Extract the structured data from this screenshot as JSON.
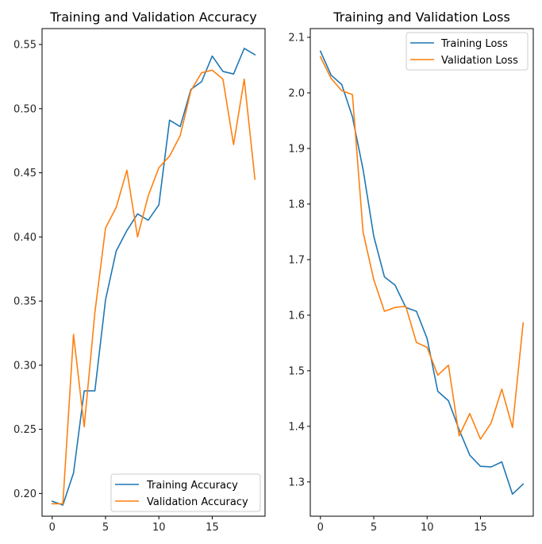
{
  "colors": {
    "training": "#1f77b4",
    "validation": "#ff7f0e"
  },
  "chart_data": [
    {
      "type": "line",
      "title": "Training and Validation Accuracy",
      "x": [
        0,
        1,
        2,
        3,
        4,
        5,
        6,
        7,
        8,
        9,
        10,
        11,
        12,
        13,
        14,
        15,
        16,
        17,
        18,
        19
      ],
      "xlim": [
        -0.95,
        19.95
      ],
      "ylim": [
        0.1823,
        0.5624
      ],
      "xticks": [
        0,
        5,
        10,
        15
      ],
      "xtick_labels": [
        "0",
        "5",
        "10",
        "15"
      ],
      "yticks": [
        0.2,
        0.25,
        0.3,
        0.35,
        0.4,
        0.45,
        0.5,
        0.55
      ],
      "ytick_labels": [
        "0.20",
        "0.25",
        "0.30",
        "0.35",
        "0.40",
        "0.45",
        "0.50",
        "0.55"
      ],
      "legend": "lower-right",
      "grid": false,
      "series": [
        {
          "name": "Training Accuracy",
          "color": "#1f77b4",
          "values": [
            0.194,
            0.191,
            0.216,
            0.28,
            0.28,
            0.351,
            0.389,
            0.405,
            0.418,
            0.413,
            0.425,
            0.491,
            0.486,
            0.515,
            0.521,
            0.541,
            0.529,
            0.527,
            0.547,
            0.542
          ]
        },
        {
          "name": "Validation Accuracy",
          "color": "#ff7f0e",
          "values": [
            0.192,
            0.192,
            0.324,
            0.252,
            0.341,
            0.407,
            0.423,
            0.452,
            0.4,
            0.432,
            0.454,
            0.463,
            0.479,
            0.514,
            0.528,
            0.53,
            0.523,
            0.472,
            0.523,
            0.445
          ]
        }
      ]
    },
    {
      "type": "line",
      "title": "Training and Validation Loss",
      "x": [
        0,
        1,
        2,
        3,
        4,
        5,
        6,
        7,
        8,
        9,
        10,
        11,
        12,
        13,
        14,
        15,
        16,
        17,
        18,
        19
      ],
      "xlim": [
        -0.95,
        19.95
      ],
      "ylim": [
        1.2383,
        2.1157
      ],
      "xticks": [
        0,
        5,
        10,
        15
      ],
      "xtick_labels": [
        "0",
        "5",
        "10",
        "15"
      ],
      "yticks": [
        1.3,
        1.4,
        1.5,
        1.6,
        1.7,
        1.8,
        1.9,
        2.0,
        2.1
      ],
      "ytick_labels": [
        "1.3",
        "1.4",
        "1.5",
        "1.6",
        "1.7",
        "1.8",
        "1.9",
        "2.0",
        "2.1"
      ],
      "legend": "upper-right",
      "grid": false,
      "series": [
        {
          "name": "Training Loss",
          "color": "#1f77b4",
          "values": [
            2.075,
            2.032,
            2.015,
            1.957,
            1.862,
            1.742,
            1.669,
            1.654,
            1.614,
            1.607,
            1.558,
            1.463,
            1.446,
            1.394,
            1.348,
            1.328,
            1.327,
            1.336,
            1.278,
            1.296
          ]
        },
        {
          "name": "Validation Loss",
          "color": "#ff7f0e",
          "values": [
            2.065,
            2.026,
            2.004,
            1.997,
            1.749,
            1.664,
            1.607,
            1.614,
            1.616,
            1.551,
            1.542,
            1.492,
            1.51,
            1.383,
            1.423,
            1.377,
            1.406,
            1.467,
            1.398,
            1.586
          ]
        }
      ]
    }
  ]
}
